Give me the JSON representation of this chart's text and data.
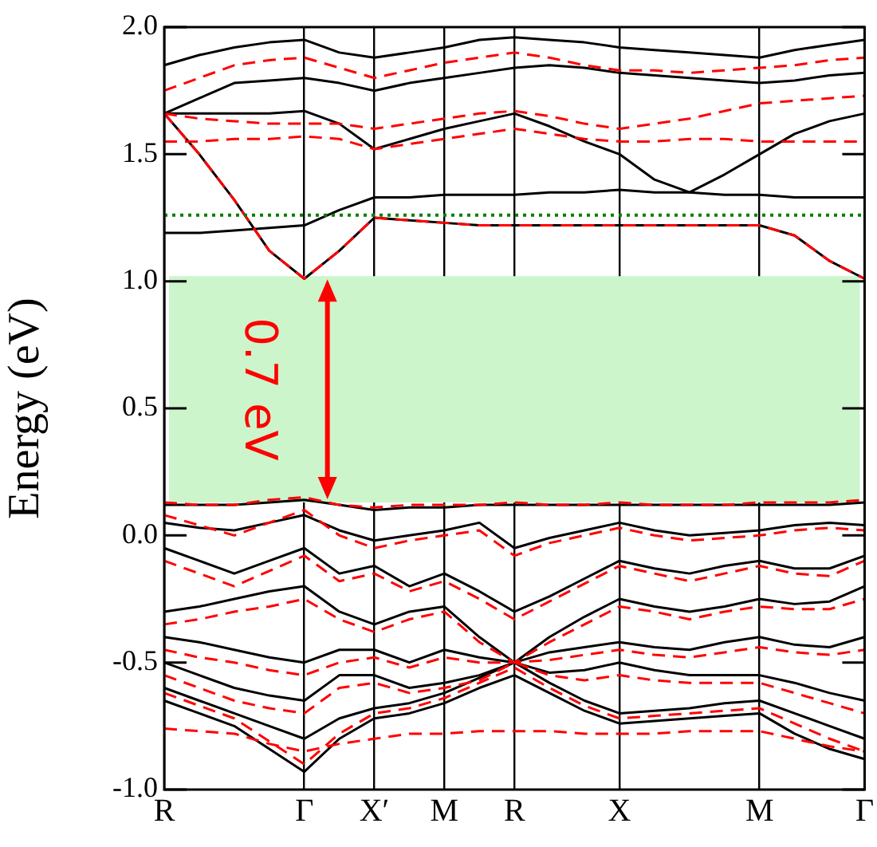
{
  "chart_data": {
    "type": "line",
    "ylabel": "Energy (eV)",
    "categories": [
      "R",
      null,
      null,
      null,
      "Γ",
      null,
      "X′",
      null,
      "M",
      null,
      "R",
      null,
      null,
      "X",
      null,
      null,
      null,
      "M",
      null,
      null,
      "Γ"
    ],
    "ylim": [
      -1.0,
      2.0
    ],
    "yticks": [
      {
        "value": -1.0,
        "label": "-1.0"
      },
      {
        "value": -0.5,
        "label": "-0.5"
      },
      {
        "value": 0,
        "label": "0.0"
      },
      {
        "value": 0.5,
        "label": "0.5"
      },
      {
        "value": 1.0,
        "label": "1.0"
      },
      {
        "value": 1.5,
        "label": "1.5"
      },
      {
        "value": 2.0,
        "label": "2.0"
      }
    ],
    "grid": "x",
    "marker": "none",
    "bands": [
      {
        "axis": "y",
        "from": 0.13,
        "to": 1.02,
        "color": "#ccf5cc"
      }
    ],
    "ref_lines": [
      {
        "axis": "y",
        "value": 1.26,
        "color": "#008000",
        "line_style": "dotted"
      }
    ],
    "annotations": [
      "0.7 eV"
    ],
    "series": [
      {
        "color": "#000000",
        "line_style": "solid",
        "values": [
          1.66,
          1.5,
          1.32,
          1.12,
          1.01,
          1.12,
          1.25,
          1.24,
          1.23,
          1.22,
          1.22,
          1.22,
          1.22,
          1.22,
          1.22,
          1.22,
          1.22,
          1.22,
          1.18,
          1.08,
          1.01
        ]
      },
      {
        "color": "#000000",
        "line_style": "solid",
        "values": [
          1.19,
          1.19,
          1.2,
          1.21,
          1.22,
          1.28,
          1.33,
          1.33,
          1.34,
          1.34,
          1.34,
          1.35,
          1.35,
          1.36,
          1.35,
          1.35,
          1.34,
          1.34,
          1.33,
          1.33,
          1.33
        ]
      },
      {
        "color": "#000000",
        "line_style": "solid",
        "values": [
          1.66,
          1.66,
          1.66,
          1.66,
          1.67,
          1.62,
          1.52,
          1.56,
          1.6,
          1.63,
          1.66,
          1.61,
          1.55,
          1.5,
          1.4,
          1.35,
          1.42,
          1.5,
          1.58,
          1.63,
          1.66
        ]
      },
      {
        "color": "#000000",
        "line_style": "solid",
        "values": [
          1.66,
          1.72,
          1.78,
          1.79,
          1.8,
          1.78,
          1.75,
          1.78,
          1.8,
          1.82,
          1.84,
          1.85,
          1.84,
          1.82,
          1.81,
          1.8,
          1.79,
          1.78,
          1.79,
          1.81,
          1.82
        ]
      },
      {
        "color": "#000000",
        "line_style": "solid",
        "values": [
          1.85,
          1.89,
          1.92,
          1.94,
          1.95,
          1.9,
          1.88,
          1.9,
          1.92,
          1.95,
          1.96,
          1.95,
          1.94,
          1.92,
          1.91,
          1.9,
          1.89,
          1.88,
          1.91,
          1.93,
          1.95
        ]
      },
      {
        "color": "#ff0000",
        "line_style": "dashed",
        "values": [
          1.66,
          1.5,
          1.32,
          1.12,
          1.01,
          1.12,
          1.25,
          1.24,
          1.23,
          1.22,
          1.22,
          1.22,
          1.22,
          1.22,
          1.22,
          1.22,
          1.22,
          1.22,
          1.18,
          1.08,
          1.01
        ]
      },
      {
        "color": "#ff0000",
        "line_style": "dashed",
        "values": [
          1.55,
          1.55,
          1.56,
          1.56,
          1.57,
          1.56,
          1.52,
          1.54,
          1.56,
          1.58,
          1.6,
          1.58,
          1.56,
          1.55,
          1.55,
          1.56,
          1.56,
          1.55,
          1.55,
          1.55,
          1.55
        ]
      },
      {
        "color": "#ff0000",
        "line_style": "dashed",
        "values": [
          1.66,
          1.64,
          1.63,
          1.62,
          1.62,
          1.62,
          1.6,
          1.62,
          1.64,
          1.66,
          1.67,
          1.65,
          1.62,
          1.6,
          1.62,
          1.64,
          1.67,
          1.7,
          1.71,
          1.72,
          1.73
        ]
      },
      {
        "color": "#ff0000",
        "line_style": "dashed",
        "values": [
          1.75,
          1.8,
          1.85,
          1.87,
          1.88,
          1.84,
          1.8,
          1.83,
          1.86,
          1.88,
          1.9,
          1.88,
          1.85,
          1.83,
          1.83,
          1.82,
          1.83,
          1.84,
          1.85,
          1.87,
          1.88
        ]
      },
      {
        "color": "#000000",
        "line_style": "solid",
        "values": [
          0.12,
          0.12,
          0.12,
          0.13,
          0.14,
          0.12,
          0.1,
          0.11,
          0.11,
          0.12,
          0.12,
          0.12,
          0.12,
          0.12,
          0.12,
          0.12,
          0.12,
          0.12,
          0.12,
          0.12,
          0.13
        ]
      },
      {
        "color": "#000000",
        "line_style": "solid",
        "values": [
          0.05,
          0.03,
          0.02,
          0.05,
          0.08,
          0.02,
          -0.02,
          0.0,
          0.02,
          0.05,
          -0.05,
          -0.01,
          0.02,
          0.05,
          0.02,
          0.0,
          0.01,
          0.02,
          0.04,
          0.05,
          0.04
        ]
      },
      {
        "color": "#000000",
        "line_style": "solid",
        "values": [
          -0.05,
          -0.1,
          -0.15,
          -0.1,
          -0.05,
          -0.15,
          -0.12,
          -0.2,
          -0.15,
          -0.22,
          -0.3,
          -0.24,
          -0.17,
          -0.1,
          -0.13,
          -0.15,
          -0.12,
          -0.1,
          -0.13,
          -0.13,
          -0.08
        ]
      },
      {
        "color": "#000000",
        "line_style": "solid",
        "values": [
          -0.3,
          -0.28,
          -0.25,
          -0.22,
          -0.2,
          -0.3,
          -0.35,
          -0.3,
          -0.28,
          -0.4,
          -0.5,
          -0.4,
          -0.32,
          -0.25,
          -0.28,
          -0.3,
          -0.28,
          -0.25,
          -0.27,
          -0.26,
          -0.2
        ]
      },
      {
        "color": "#000000",
        "line_style": "solid",
        "values": [
          -0.4,
          -0.42,
          -0.45,
          -0.48,
          -0.5,
          -0.45,
          -0.45,
          -0.5,
          -0.45,
          -0.48,
          -0.5,
          -0.46,
          -0.44,
          -0.42,
          -0.44,
          -0.45,
          -0.42,
          -0.4,
          -0.43,
          -0.44,
          -0.4
        ]
      },
      {
        "color": "#000000",
        "line_style": "solid",
        "values": [
          -0.5,
          -0.55,
          -0.6,
          -0.63,
          -0.65,
          -0.55,
          -0.55,
          -0.6,
          -0.58,
          -0.55,
          -0.5,
          -0.54,
          -0.53,
          -0.5,
          -0.53,
          -0.55,
          -0.55,
          -0.55,
          -0.58,
          -0.62,
          -0.65
        ]
      },
      {
        "color": "#000000",
        "line_style": "solid",
        "values": [
          -0.6,
          -0.65,
          -0.7,
          -0.75,
          -0.8,
          -0.72,
          -0.68,
          -0.66,
          -0.62,
          -0.56,
          -0.5,
          -0.58,
          -0.65,
          -0.7,
          -0.69,
          -0.68,
          -0.66,
          -0.65,
          -0.7,
          -0.75,
          -0.8
        ]
      },
      {
        "color": "#000000",
        "line_style": "solid",
        "values": [
          -0.65,
          -0.7,
          -0.75,
          -0.84,
          -0.93,
          -0.8,
          -0.72,
          -0.7,
          -0.66,
          -0.6,
          -0.55,
          -0.62,
          -0.69,
          -0.74,
          -0.73,
          -0.72,
          -0.71,
          -0.7,
          -0.78,
          -0.84,
          -0.88
        ]
      },
      {
        "color": "#ff0000",
        "line_style": "dashed",
        "values": [
          0.13,
          0.12,
          0.12,
          0.14,
          0.15,
          0.12,
          0.11,
          0.12,
          0.12,
          0.12,
          0.13,
          0.12,
          0.12,
          0.13,
          0.12,
          0.12,
          0.12,
          0.13,
          0.13,
          0.13,
          0.14
        ]
      },
      {
        "color": "#ff0000",
        "line_style": "dashed",
        "values": [
          0.08,
          0.04,
          0.0,
          0.05,
          0.1,
          0.0,
          -0.05,
          -0.02,
          0.0,
          0.02,
          -0.08,
          -0.03,
          0.0,
          0.03,
          0.0,
          -0.02,
          -0.01,
          0.0,
          0.02,
          0.03,
          0.02
        ]
      },
      {
        "color": "#ff0000",
        "line_style": "dashed",
        "values": [
          -0.1,
          -0.15,
          -0.2,
          -0.14,
          -0.08,
          -0.18,
          -0.15,
          -0.22,
          -0.18,
          -0.25,
          -0.33,
          -0.26,
          -0.19,
          -0.12,
          -0.15,
          -0.18,
          -0.15,
          -0.12,
          -0.15,
          -0.16,
          -0.1
        ]
      },
      {
        "color": "#ff0000",
        "line_style": "dashed",
        "values": [
          -0.35,
          -0.33,
          -0.3,
          -0.28,
          -0.25,
          -0.33,
          -0.38,
          -0.33,
          -0.3,
          -0.42,
          -0.5,
          -0.42,
          -0.35,
          -0.28,
          -0.3,
          -0.33,
          -0.3,
          -0.28,
          -0.29,
          -0.29,
          -0.25
        ]
      },
      {
        "color": "#ff0000",
        "line_style": "dashed",
        "values": [
          -0.45,
          -0.48,
          -0.5,
          -0.53,
          -0.55,
          -0.5,
          -0.48,
          -0.52,
          -0.48,
          -0.5,
          -0.5,
          -0.49,
          -0.47,
          -0.45,
          -0.47,
          -0.48,
          -0.46,
          -0.44,
          -0.46,
          -0.47,
          -0.45
        ]
      },
      {
        "color": "#ff0000",
        "line_style": "dashed",
        "values": [
          -0.55,
          -0.6,
          -0.65,
          -0.68,
          -0.7,
          -0.6,
          -0.58,
          -0.62,
          -0.6,
          -0.57,
          -0.5,
          -0.55,
          -0.57,
          -0.55,
          -0.57,
          -0.58,
          -0.58,
          -0.58,
          -0.62,
          -0.66,
          -0.7
        ]
      },
      {
        "color": "#ff0000",
        "line_style": "dashed",
        "values": [
          -0.62,
          -0.67,
          -0.72,
          -0.81,
          -0.9,
          -0.78,
          -0.7,
          -0.68,
          -0.64,
          -0.58,
          -0.52,
          -0.6,
          -0.67,
          -0.72,
          -0.71,
          -0.7,
          -0.69,
          -0.68,
          -0.74,
          -0.8,
          -0.85
        ]
      },
      {
        "color": "#ff0000",
        "line_style": "dashed",
        "values": [
          -0.76,
          -0.77,
          -0.78,
          -0.82,
          -0.85,
          -0.82,
          -0.8,
          -0.78,
          -0.78,
          -0.77,
          -0.77,
          -0.77,
          -0.78,
          -0.78,
          -0.78,
          -0.77,
          -0.77,
          -0.77,
          -0.8,
          -0.83,
          -0.85
        ]
      }
    ]
  }
}
